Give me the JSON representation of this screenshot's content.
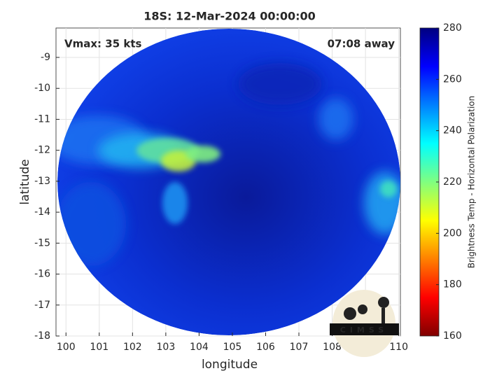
{
  "chart_data": {
    "type": "image",
    "title": "18S: 12-Mar-2024 00:00:00",
    "annotations": [
      "Vmax: 35 kts",
      "07:08 away"
    ],
    "xlabel": "longitude",
    "ylabel": "latitude",
    "xlim": [
      99.7,
      110.05
    ],
    "ylim": [
      -18,
      -8.05
    ],
    "xticks": [
      100,
      101,
      102,
      103,
      104,
      105,
      106,
      107,
      108,
      109,
      110
    ],
    "yticks": [
      -18,
      -17,
      -16,
      -15,
      -14,
      -13,
      -12,
      -11,
      -10,
      -9
    ],
    "grid": true,
    "colorbar": {
      "label": "Brightness Temp - Horizontal Polarization",
      "lim": [
        160,
        280
      ],
      "ticks": [
        160,
        180,
        200,
        220,
        240,
        260,
        280
      ],
      "colormap": [
        "#800000",
        "#ff0000",
        "#ff8000",
        "#ffff00",
        "#80ff80",
        "#00ffff",
        "#0080ff",
        "#0000ff",
        "#000080"
      ]
    },
    "logo_text": "CIMSS"
  }
}
